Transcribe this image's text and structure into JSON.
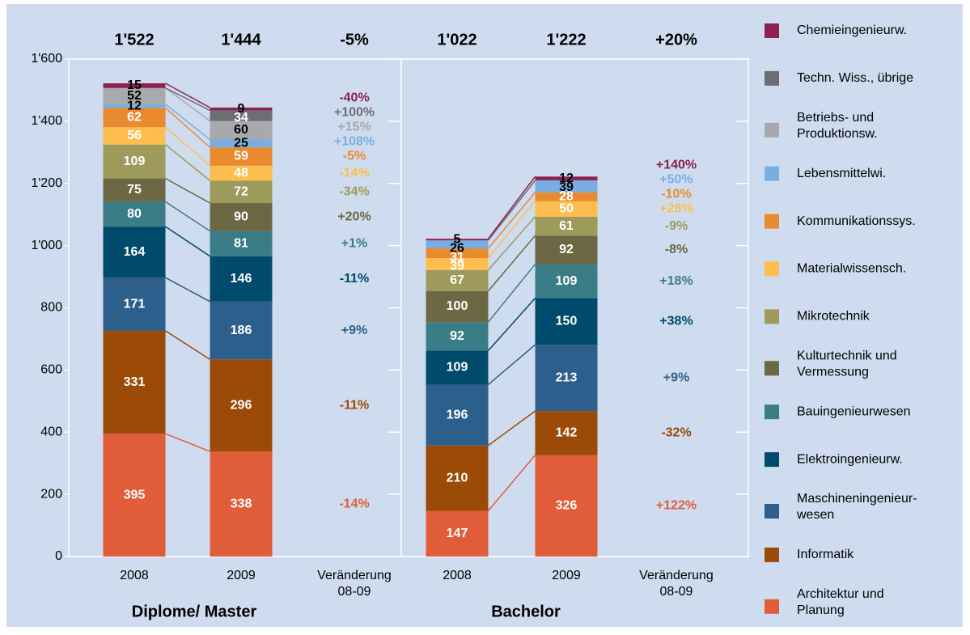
{
  "chart_data": {
    "type": "stacked_bar",
    "panels": [
      {
        "title": "Diplome/ Master",
        "categories": [
          "2008",
          "2009",
          "Veränderung\n08-09"
        ]
      },
      {
        "title": "Bachelor",
        "categories": [
          "2008",
          "2009",
          "Veränderung\n08-09"
        ]
      }
    ],
    "totals": [
      {
        "value": 1522,
        "label": "1'522"
      },
      {
        "value": 1444,
        "label": "1'444"
      },
      {
        "value": -5,
        "label": "-5%"
      },
      {
        "value": 1022,
        "label": "1'022"
      },
      {
        "value": 1222,
        "label": "1'222"
      },
      {
        "value": 20,
        "label": "+20%"
      }
    ],
    "ylim": [
      0,
      1600
    ],
    "yticks": [
      0,
      200,
      400,
      600,
      800,
      {
        "value": 1000,
        "label": "1'000"
      },
      {
        "value": 1200,
        "label": "1'200"
      },
      {
        "value": 1400,
        "label": "1'400"
      },
      {
        "value": 1600,
        "label": "1'600"
      }
    ],
    "series": [
      {
        "name": "Architektur und\nPlanung",
        "color": "#e15c39",
        "label_color": "#ffffff",
        "values": [
          395,
          338,
          147,
          326
        ],
        "changes": [
          "-14%",
          "+122%"
        ]
      },
      {
        "name": "Informatik",
        "color": "#9b4a07",
        "label_color": "#ffffff",
        "values": [
          331,
          296,
          210,
          142
        ],
        "changes": [
          "-11%",
          "-32%"
        ]
      },
      {
        "name": "Maschineningenieur-\nwesen",
        "color": "#2d5f8c",
        "label_color": "#ffffff",
        "values": [
          171,
          186,
          196,
          213
        ],
        "changes": [
          "+9%",
          "+9%"
        ]
      },
      {
        "name": "Elektroingenieurw.",
        "color": "#004a6b",
        "label_color": "#ffffff",
        "values": [
          164,
          146,
          109,
          150
        ],
        "changes": [
          "-11%",
          "+38%"
        ]
      },
      {
        "name": "Bauingenieurwesen",
        "color": "#3b7d87",
        "label_color": "#ffffff",
        "values": [
          80,
          81,
          92,
          109
        ],
        "changes": [
          "+1%",
          "+18%"
        ]
      },
      {
        "name": "Kulturtechnik und\nVermessung",
        "color": "#6b6843",
        "label_color": "#ffffff",
        "values": [
          75,
          90,
          100,
          92
        ],
        "changes": [
          "+20%",
          "-8%"
        ]
      },
      {
        "name": "Mikrotechnik",
        "color": "#9d9a5b",
        "label_color": "#ffffff",
        "values": [
          109,
          72,
          67,
          61
        ],
        "changes": [
          "-34%",
          "-9%"
        ]
      },
      {
        "name": "Materialwissensch.",
        "color": "#fdbe4f",
        "label_color": "#ffffff",
        "values": [
          56,
          48,
          39,
          50
        ],
        "changes": [
          "-14%",
          "+28%"
        ]
      },
      {
        "name": "Kommunikationssys.",
        "color": "#ea8a2e",
        "label_color": "#ffffff",
        "values": [
          62,
          59,
          31,
          28
        ],
        "changes": [
          "-5%",
          "-10%"
        ]
      },
      {
        "name": "Lebensmittelwi.",
        "color": "#7aaee0",
        "label_color": "#000000",
        "values": [
          12,
          25,
          26,
          39
        ],
        "changes": [
          "+108%",
          "+50%"
        ]
      },
      {
        "name": "Betriebs- und\nProduktionsw.",
        "color": "#a7a9ac",
        "label_color": "#000000",
        "values": [
          52,
          60,
          0,
          0
        ],
        "changes": [
          "+15%",
          null
        ]
      },
      {
        "name": "Techn. Wiss., übrige",
        "color": "#6d6e71",
        "label_color": "#ffffff",
        "values": [
          0,
          34,
          0,
          0
        ],
        "changes": [
          "+100%",
          null
        ]
      },
      {
        "name": "Chemieingenieurw.",
        "color": "#8b2252",
        "label_color": "#000000",
        "values": [
          15,
          9,
          5,
          12
        ],
        "changes": [
          "-40%",
          "+140%"
        ]
      }
    ]
  }
}
